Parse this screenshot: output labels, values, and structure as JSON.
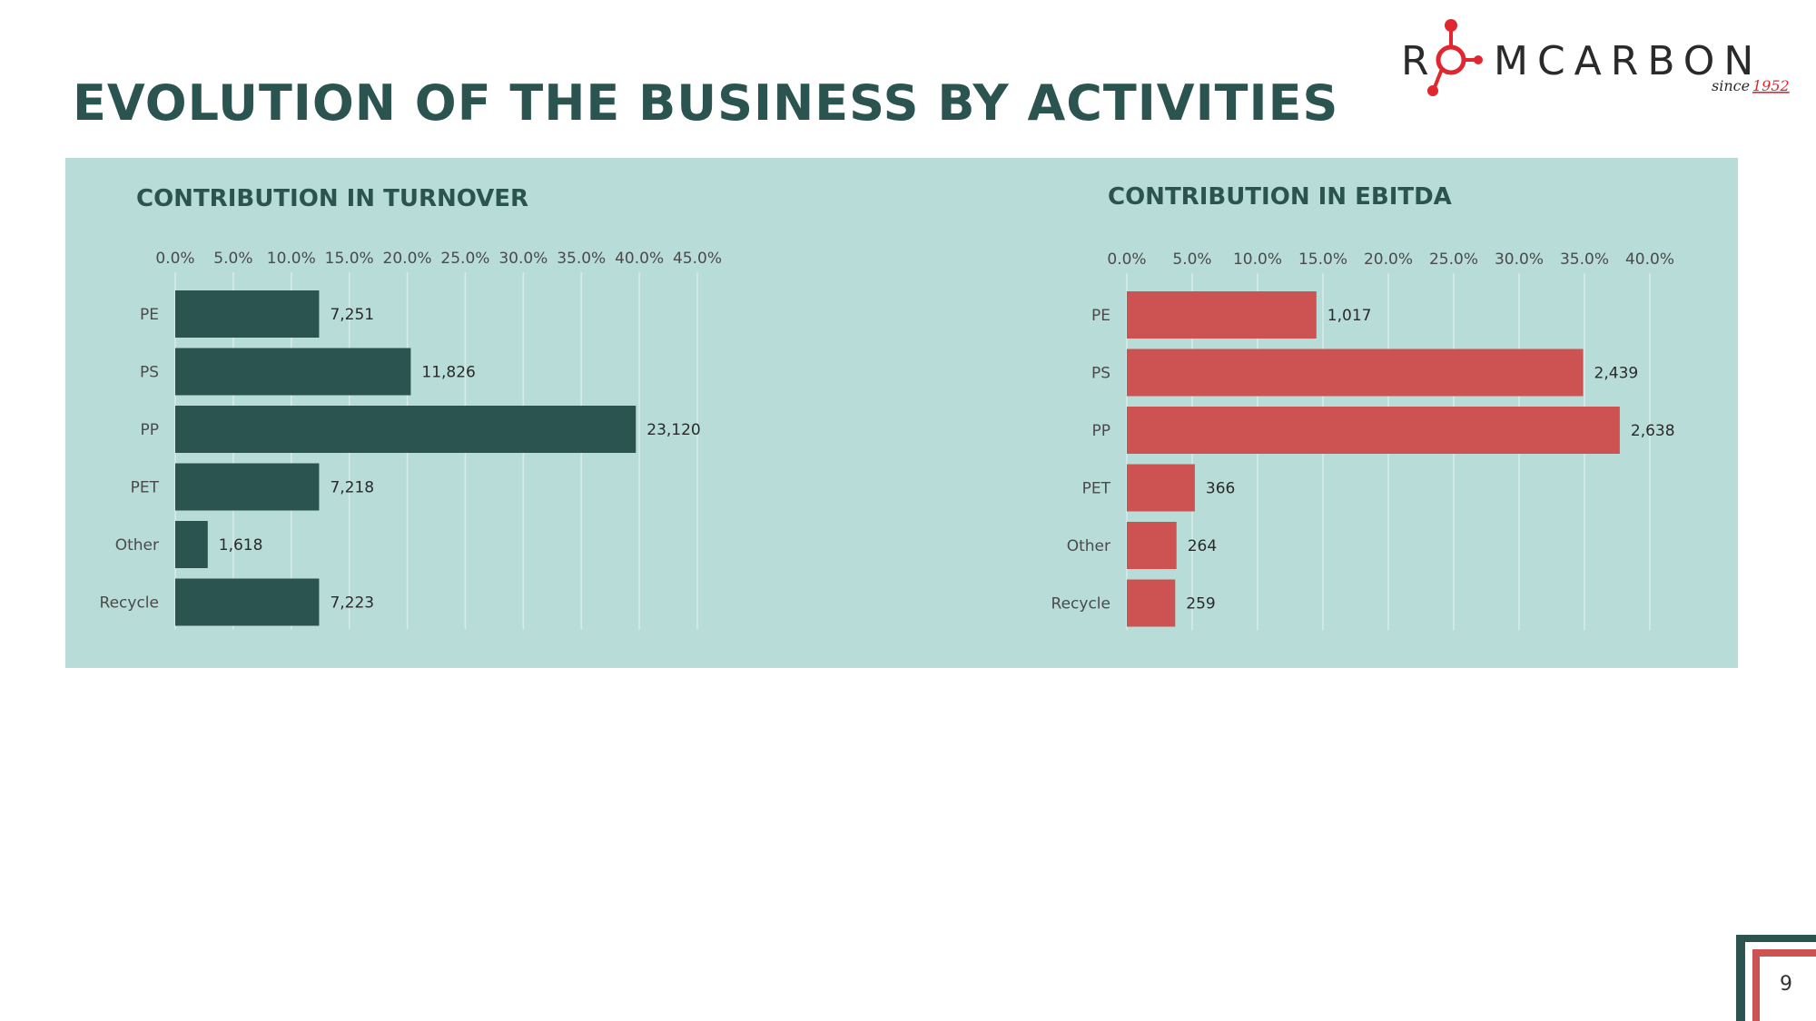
{
  "page": {
    "title": "EVOLUTION OF THE BUSINESS BY ACTIVITIES",
    "page_number": "9"
  },
  "logo": {
    "brand_text": "ROMCARBON",
    "tagline": "since 1952",
    "accent_color": "#e0262e"
  },
  "colors": {
    "panel_background": "#b8ddd8",
    "title_color": "#2b5450",
    "turnover_bar": "#2b5450",
    "ebitda_bar": "#cd5252"
  },
  "chart_data": [
    {
      "type": "bar",
      "orientation": "horizontal",
      "title": "CONTRIBUTION IN TURNOVER",
      "categories": [
        "PE",
        "PS",
        "PP",
        "PET",
        "Other",
        "Recycle"
      ],
      "values": [
        7251,
        11826,
        23120,
        7218,
        1618,
        7223
      ],
      "value_labels": [
        "7,251",
        "11,826",
        "23,120",
        "7,218",
        "1,618",
        "7,223"
      ],
      "share_percent": [
        12.4,
        20.3,
        39.7,
        12.4,
        2.8,
        12.4
      ],
      "x_ticks": [
        "0.0%",
        "5.0%",
        "10.0%",
        "15.0%",
        "20.0%",
        "25.0%",
        "30.0%",
        "35.0%",
        "40.0%",
        "45.0%"
      ],
      "xlim": [
        0,
        45
      ],
      "x_axis_position": "top",
      "grid": true,
      "color": "#2b5450"
    },
    {
      "type": "bar",
      "orientation": "horizontal",
      "title": "CONTRIBUTION IN EBITDA",
      "categories": [
        "PE",
        "PS",
        "PP",
        "PET",
        "Other",
        "Recycle"
      ],
      "values": [
        1017,
        2439,
        2638,
        366,
        264,
        259
      ],
      "value_labels": [
        "1,017",
        "2,439",
        "2,638",
        "366",
        "264",
        "259"
      ],
      "share_percent": [
        14.5,
        34.9,
        37.7,
        5.2,
        3.8,
        3.7
      ],
      "x_ticks": [
        "0.0%",
        "5.0%",
        "10.0%",
        "15.0%",
        "20.0%",
        "25.0%",
        "30.0%",
        "35.0%",
        "40.0%"
      ],
      "xlim": [
        0,
        40
      ],
      "x_axis_position": "top",
      "grid": true,
      "color": "#cd5252"
    }
  ]
}
